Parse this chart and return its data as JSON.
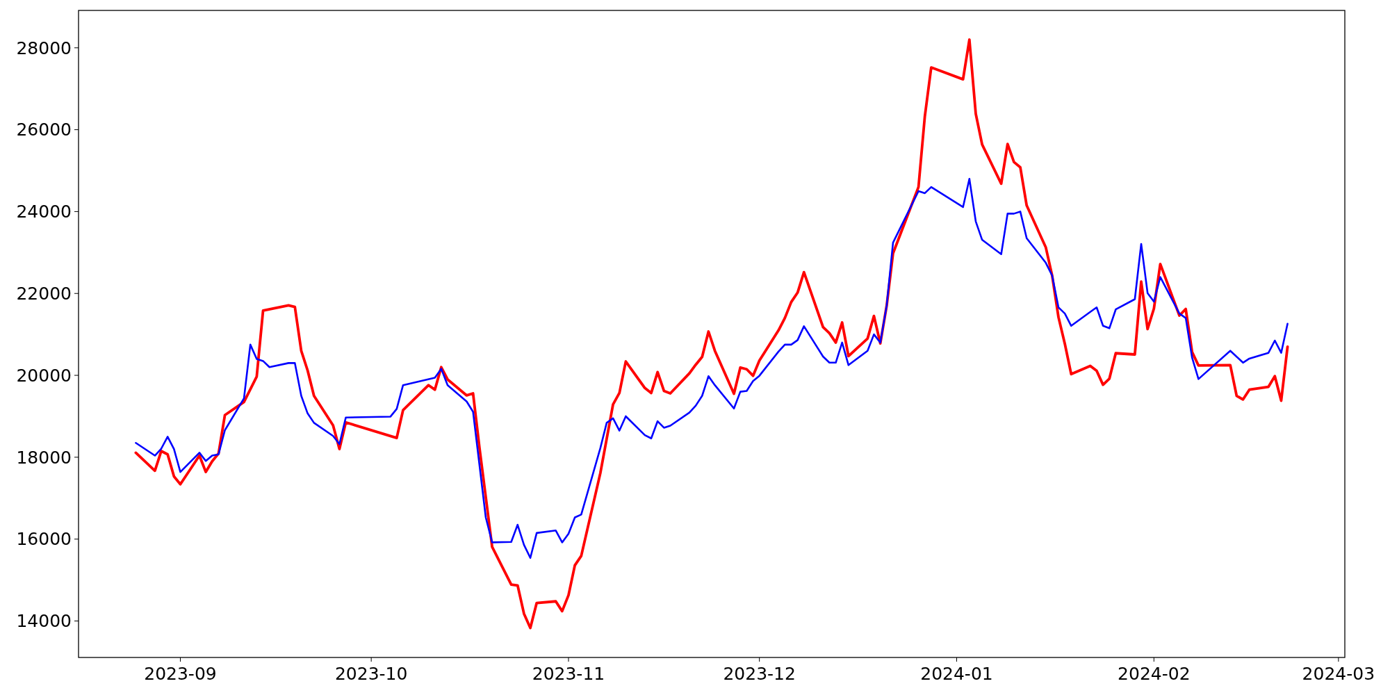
{
  "chart_data": {
    "type": "line",
    "xlim": [
      "2023-08-16",
      "2024-03-02"
    ],
    "ylim": [
      13109,
      28913
    ],
    "xticks": [
      {
        "value": "2023-09-01",
        "label": "2023-09"
      },
      {
        "value": "2023-10-01",
        "label": "2023-10"
      },
      {
        "value": "2023-11-01",
        "label": "2023-11"
      },
      {
        "value": "2023-12-01",
        "label": "2023-12"
      },
      {
        "value": "2024-01-01",
        "label": "2024-01"
      },
      {
        "value": "2024-02-01",
        "label": "2024-02"
      },
      {
        "value": "2024-03-01",
        "label": "2024-03"
      }
    ],
    "yticks": [
      14000,
      16000,
      18000,
      20000,
      22000,
      24000,
      26000,
      28000
    ],
    "grid": false,
    "marker": "none",
    "line_style": "solid",
    "series": [
      {
        "color": "#ff0000",
        "x": [
          "2023-08-25",
          "2023-08-28",
          "2023-08-29",
          "2023-08-30",
          "2023-08-31",
          "2023-09-01",
          "2023-09-04",
          "2023-09-05",
          "2023-09-06",
          "2023-09-07",
          "2023-09-08",
          "2023-09-11",
          "2023-09-13",
          "2023-09-14",
          "2023-09-18",
          "2023-09-19",
          "2023-09-20",
          "2023-09-21",
          "2023-09-22",
          "2023-09-25",
          "2023-09-26",
          "2023-09-27",
          "2023-10-05",
          "2023-10-06",
          "2023-10-10",
          "2023-10-11",
          "2023-10-12",
          "2023-10-13",
          "2023-10-16",
          "2023-10-17",
          "2023-10-18",
          "2023-10-20",
          "2023-10-23",
          "2023-10-24",
          "2023-10-25",
          "2023-10-26",
          "2023-10-27",
          "2023-10-30",
          "2023-10-31",
          "2023-11-01",
          "2023-11-02",
          "2023-11-03",
          "2023-11-06",
          "2023-11-08",
          "2023-11-09",
          "2023-11-10",
          "2023-11-13",
          "2023-11-14",
          "2023-11-15",
          "2023-11-16",
          "2023-11-17",
          "2023-11-20",
          "2023-11-21",
          "2023-11-22",
          "2023-11-23",
          "2023-11-24",
          "2023-11-27",
          "2023-11-28",
          "2023-11-29",
          "2023-11-30",
          "2023-12-01",
          "2023-12-04",
          "2023-12-05",
          "2023-12-06",
          "2023-12-07",
          "2023-12-08",
          "2023-12-11",
          "2023-12-12",
          "2023-12-13",
          "2023-12-14",
          "2023-12-15",
          "2023-12-18",
          "2023-12-19",
          "2023-12-20",
          "2023-12-21",
          "2023-12-22",
          "2023-12-26",
          "2023-12-27",
          "2023-12-28",
          "2024-01-02",
          "2024-01-03",
          "2024-01-04",
          "2024-01-05",
          "2024-01-08",
          "2024-01-09",
          "2024-01-10",
          "2024-01-11",
          "2024-01-12",
          "2024-01-15",
          "2024-01-16",
          "2024-01-17",
          "2024-01-18",
          "2024-01-19",
          "2024-01-22",
          "2024-01-23",
          "2024-01-24",
          "2024-01-25",
          "2024-01-26",
          "2024-01-29",
          "2024-01-30",
          "2024-01-31",
          "2024-02-01",
          "2024-02-02",
          "2024-02-05",
          "2024-02-06",
          "2024-02-07",
          "2024-02-08",
          "2024-02-13",
          "2024-02-14",
          "2024-02-15",
          "2024-02-16",
          "2024-02-19",
          "2024-02-20",
          "2024-02-21",
          "2024-02-22"
        ],
        "values": [
          18110,
          17670,
          18150,
          18070,
          17530,
          17340,
          18040,
          17640,
          17900,
          18090,
          19030,
          19350,
          19970,
          21580,
          21710,
          21670,
          20600,
          20120,
          19500,
          18780,
          18200,
          18850,
          18470,
          19150,
          19760,
          19650,
          20200,
          19900,
          19510,
          19560,
          18240,
          15810,
          14890,
          14870,
          14180,
          13830,
          14440,
          14480,
          14240,
          14630,
          15360,
          15590,
          17610,
          19290,
          19570,
          20340,
          19690,
          19570,
          20080,
          19620,
          19560,
          20050,
          20260,
          20450,
          21070,
          20600,
          19550,
          20190,
          20150,
          19990,
          20360,
          21100,
          21400,
          21790,
          22020,
          22520,
          21180,
          21030,
          20800,
          21290,
          20470,
          20900,
          21450,
          20780,
          21700,
          22980,
          24600,
          26330,
          27520,
          27230,
          28200,
          26390,
          25640,
          24680,
          25650,
          25210,
          25080,
          24150,
          23130,
          22440,
          21420,
          20770,
          20030,
          20230,
          20110,
          19770,
          19920,
          20540,
          20510,
          22290,
          21130,
          21630,
          22720,
          21460,
          21620,
          20570,
          20240,
          20250,
          19500,
          19410,
          19650,
          19720,
          19980,
          19380,
          20700
        ]
      },
      {
        "color": "#0000ff",
        "x": [
          "2023-08-25",
          "2023-08-28",
          "2023-08-29",
          "2023-08-30",
          "2023-08-31",
          "2023-09-01",
          "2023-09-04",
          "2023-09-05",
          "2023-09-06",
          "2023-09-07",
          "2023-09-08",
          "2023-09-11",
          "2023-09-12",
          "2023-09-13",
          "2023-09-14",
          "2023-09-15",
          "2023-09-18",
          "2023-09-19",
          "2023-09-20",
          "2023-09-21",
          "2023-09-22",
          "2023-09-25",
          "2023-09-26",
          "2023-09-27",
          "2023-10-04",
          "2023-10-05",
          "2023-10-06",
          "2023-10-11",
          "2023-10-12",
          "2023-10-13",
          "2023-10-16",
          "2023-10-17",
          "2023-10-19",
          "2023-10-20",
          "2023-10-23",
          "2023-10-24",
          "2023-10-25",
          "2023-10-26",
          "2023-10-27",
          "2023-10-30",
          "2023-10-31",
          "2023-11-01",
          "2023-11-02",
          "2023-11-03",
          "2023-11-06",
          "2023-11-07",
          "2023-11-08",
          "2023-11-09",
          "2023-11-10",
          "2023-11-13",
          "2023-11-14",
          "2023-11-15",
          "2023-11-16",
          "2023-11-17",
          "2023-11-20",
          "2023-11-21",
          "2023-11-22",
          "2023-11-23",
          "2023-11-24",
          "2023-11-27",
          "2023-11-28",
          "2023-11-29",
          "2023-11-30",
          "2023-12-01",
          "2023-12-04",
          "2023-12-05",
          "2023-12-06",
          "2023-12-07",
          "2023-12-08",
          "2023-12-11",
          "2023-12-12",
          "2023-12-13",
          "2023-12-14",
          "2023-12-15",
          "2023-12-18",
          "2023-12-19",
          "2023-12-20",
          "2023-12-21",
          "2023-12-22",
          "2023-12-26",
          "2023-12-27",
          "2023-12-28",
          "2024-01-02",
          "2024-01-03",
          "2024-01-04",
          "2024-01-05",
          "2024-01-08",
          "2024-01-09",
          "2024-01-10",
          "2024-01-11",
          "2024-01-12",
          "2024-01-15",
          "2024-01-16",
          "2024-01-17",
          "2024-01-18",
          "2024-01-19",
          "2024-01-22",
          "2024-01-23",
          "2024-01-24",
          "2024-01-25",
          "2024-01-26",
          "2024-01-29",
          "2024-01-30",
          "2024-01-31",
          "2024-02-01",
          "2024-02-02",
          "2024-02-05",
          "2024-02-06",
          "2024-02-07",
          "2024-02-08",
          "2024-02-13",
          "2024-02-15",
          "2024-02-16",
          "2024-02-19",
          "2024-02-20",
          "2024-02-21",
          "2024-02-22"
        ],
        "values": [
          18350,
          18040,
          18210,
          18500,
          18200,
          17640,
          18110,
          17910,
          18040,
          18070,
          18660,
          19440,
          20750,
          20400,
          20350,
          20200,
          20300,
          20300,
          19500,
          19070,
          18840,
          18520,
          18320,
          18970,
          18990,
          19180,
          19760,
          19940,
          20160,
          19760,
          19360,
          19110,
          16530,
          15920,
          15930,
          16350,
          15860,
          15540,
          16150,
          16210,
          15920,
          16130,
          16530,
          16600,
          18220,
          18840,
          18950,
          18650,
          19000,
          18540,
          18460,
          18880,
          18720,
          18770,
          19090,
          19260,
          19500,
          19980,
          19760,
          19190,
          19600,
          19620,
          19860,
          19990,
          20580,
          20750,
          20750,
          20860,
          21200,
          20460,
          20310,
          20310,
          20800,
          20250,
          20600,
          21000,
          20800,
          21700,
          23240,
          24500,
          24450,
          24600,
          24110,
          24800,
          23760,
          23310,
          22960,
          23950,
          23950,
          24000,
          23350,
          22750,
          22440,
          21660,
          21510,
          21210,
          21550,
          21660,
          21210,
          21150,
          21610,
          21860,
          23210,
          22010,
          21800,
          22400,
          21510,
          21400,
          20430,
          19910,
          20600,
          20310,
          20410,
          20550,
          20850,
          20550,
          21260
        ]
      }
    ]
  }
}
